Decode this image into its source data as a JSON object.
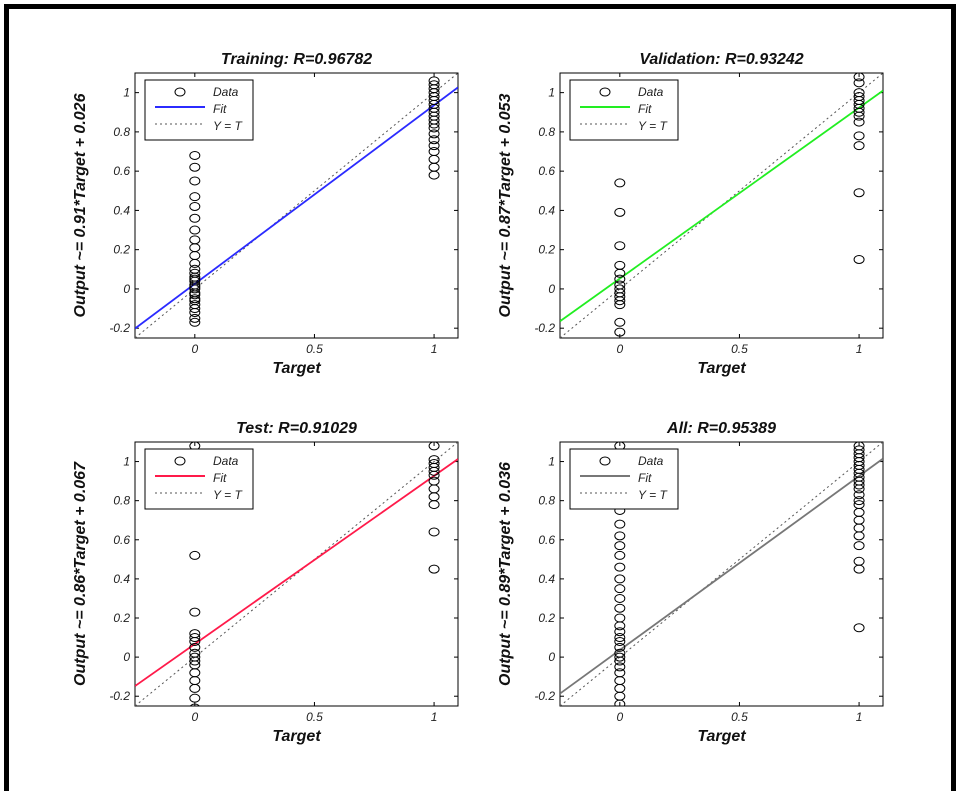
{
  "chart_data": [
    {
      "type": "scatter",
      "title": "Training: R=0.96782",
      "xlabel": "Target",
      "ylabel": "Output ~= 0.91*Target + 0.026",
      "xlim": [
        -0.25,
        1.1
      ],
      "ylim": [
        -0.25,
        1.1
      ],
      "x_ticks": [
        "0",
        "0.5",
        "1"
      ],
      "y_ticks": [
        "-0.2",
        "0",
        "0.2",
        "0.4",
        "0.6",
        "0.8",
        "1"
      ],
      "fit": {
        "slope": 0.91,
        "intercept": 0.026,
        "color": "#2b2bff"
      },
      "legend": [
        "Data",
        "Fit",
        "Y = T"
      ],
      "legend_position": "top-left",
      "series": [
        {
          "name": "Data",
          "x": 0,
          "y": [
            -0.17,
            -0.15,
            -0.12,
            -0.1,
            -0.08,
            -0.06,
            -0.05,
            -0.03,
            -0.02,
            0,
            0.01,
            0.02,
            0.04,
            0.05,
            0.06,
            0.08,
            0.1,
            0.13,
            0.17,
            0.21,
            0.25,
            0.3,
            0.36,
            0.42,
            0.47,
            0.55,
            0.62,
            0.68
          ]
        },
        {
          "name": "Data",
          "x": 1,
          "y": [
            0.58,
            0.62,
            0.66,
            0.7,
            0.73,
            0.76,
            0.79,
            0.82,
            0.84,
            0.86,
            0.88,
            0.9,
            0.92,
            0.94,
            0.96,
            0.98,
            1.0,
            1.02,
            1.04,
            1.06
          ]
        }
      ]
    },
    {
      "type": "scatter",
      "title": "Validation: R=0.93242",
      "xlabel": "Target",
      "ylabel": "Output ~= 0.87*Target + 0.053",
      "xlim": [
        -0.25,
        1.1
      ],
      "ylim": [
        -0.25,
        1.1
      ],
      "x_ticks": [
        "0",
        "0.5",
        "1"
      ],
      "y_ticks": [
        "-0.2",
        "0",
        "0.2",
        "0.4",
        "0.6",
        "0.8",
        "1"
      ],
      "fit": {
        "slope": 0.87,
        "intercept": 0.053,
        "color": "#22ee22"
      },
      "legend": [
        "Data",
        "Fit",
        "Y = T"
      ],
      "legend_position": "top-left",
      "series": [
        {
          "name": "Data",
          "x": 0,
          "y": [
            -0.22,
            -0.17,
            -0.08,
            -0.06,
            -0.04,
            -0.02,
            0,
            0.02,
            0.05,
            0.08,
            0.12,
            0.22,
            0.39,
            0.54
          ]
        },
        {
          "name": "Data",
          "x": 1,
          "y": [
            0.15,
            0.49,
            0.73,
            0.78,
            0.85,
            0.88,
            0.9,
            0.92,
            0.94,
            0.96,
            0.98,
            1.0,
            1.05,
            1.08
          ]
        }
      ]
    },
    {
      "type": "scatter",
      "title": "Test: R=0.91029",
      "xlabel": "Target",
      "ylabel": "Output ~= 0.86*Target + 0.067",
      "xlim": [
        -0.25,
        1.1
      ],
      "ylim": [
        -0.25,
        1.1
      ],
      "x_ticks": [
        "0",
        "0.5",
        "1"
      ],
      "y_ticks": [
        "-0.2",
        "0",
        "0.2",
        "0.4",
        "0.6",
        "0.8",
        "1"
      ],
      "fit": {
        "slope": 0.86,
        "intercept": 0.067,
        "color": "#ff1a4a"
      },
      "legend": [
        "Data",
        "Fit",
        "Y = T"
      ],
      "legend_position": "top-left",
      "series": [
        {
          "name": "Data",
          "x": 0,
          "y": [
            -0.26,
            -0.21,
            -0.16,
            -0.12,
            -0.08,
            -0.04,
            -0.02,
            0,
            0.02,
            0.05,
            0.08,
            0.1,
            0.12,
            0.23,
            0.52,
            1.08
          ]
        },
        {
          "name": "Data",
          "x": 1,
          "y": [
            0.45,
            0.64,
            0.78,
            0.82,
            0.86,
            0.9,
            0.93,
            0.95,
            0.97,
            0.99,
            1.01,
            1.08
          ]
        }
      ]
    },
    {
      "type": "scatter",
      "title": "All: R=0.95389",
      "xlabel": "Target",
      "ylabel": "Output ~= 0.89*Target + 0.036",
      "xlim": [
        -0.25,
        1.1
      ],
      "ylim": [
        -0.25,
        1.1
      ],
      "x_ticks": [
        "0",
        "0.5",
        "1"
      ],
      "y_ticks": [
        "-0.2",
        "0",
        "0.2",
        "0.4",
        "0.6",
        "0.8",
        "1"
      ],
      "fit": {
        "slope": 0.89,
        "intercept": 0.036,
        "color": "#777777"
      },
      "legend": [
        "Data",
        "Fit",
        "Y = T"
      ],
      "legend_position": "top-left",
      "series": [
        {
          "name": "Data",
          "x": 0,
          "y": [
            -0.24,
            -0.2,
            -0.16,
            -0.12,
            -0.08,
            -0.05,
            -0.02,
            0,
            0.02,
            0.05,
            0.08,
            0.1,
            0.13,
            0.16,
            0.2,
            0.25,
            0.3,
            0.35,
            0.4,
            0.46,
            0.52,
            0.57,
            0.62,
            0.68,
            0.75,
            0.84,
            0.92,
            1.08
          ]
        },
        {
          "name": "Data",
          "x": 1,
          "y": [
            0.15,
            0.45,
            0.49,
            0.57,
            0.62,
            0.66,
            0.7,
            0.74,
            0.78,
            0.8,
            0.83,
            0.86,
            0.88,
            0.9,
            0.92,
            0.94,
            0.96,
            0.98,
            1.0,
            1.02,
            1.04,
            1.06,
            1.08
          ]
        }
      ]
    }
  ]
}
